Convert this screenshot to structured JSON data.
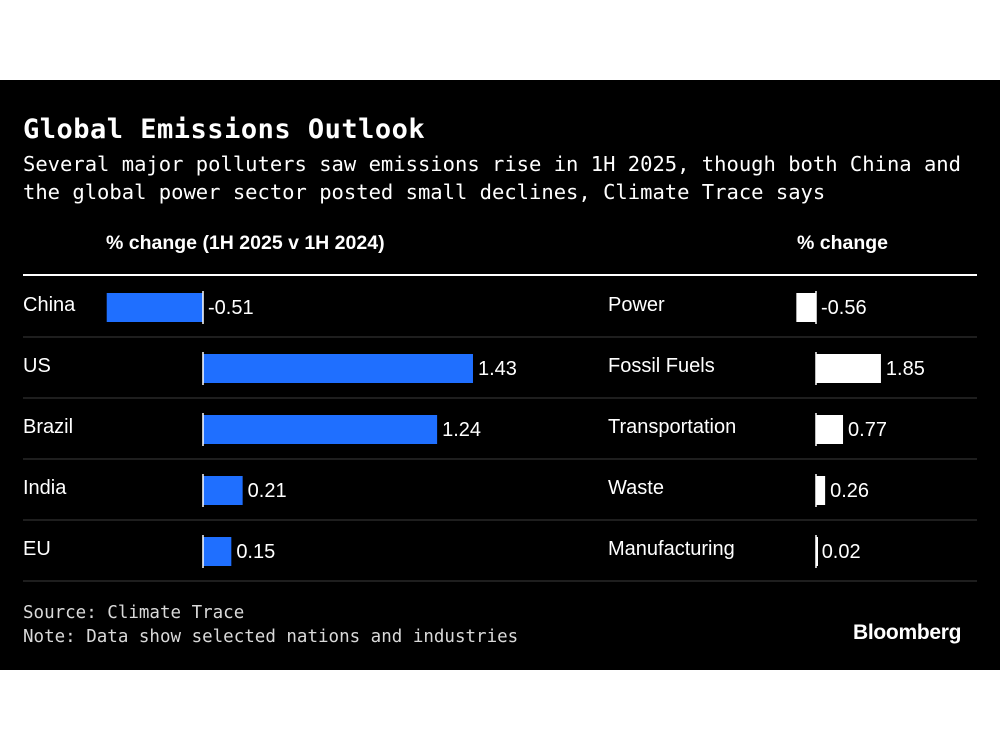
{
  "title": "Global Emissions Outlook",
  "subtitle": "Several major polluters saw emissions rise in 1H 2025, though both China and the global power sector posted small declines, Climate Trace says",
  "source": "Source: Climate Trace",
  "note": "Note: Data show selected nations and industries",
  "brand": "Bloomberg",
  "colors": {
    "left_bars": "#1f6fff",
    "right_bars": "#ffffff",
    "background": "#000000",
    "text": "#ffffff",
    "row_rule": "#3c3c3c"
  },
  "chart_data": [
    {
      "type": "bar",
      "orientation": "horizontal",
      "title": "% change (1H 2025 v 1H 2024)",
      "categories": [
        "China",
        "US",
        "Brazil",
        "India",
        "EU"
      ],
      "values": [
        -0.51,
        1.43,
        1.24,
        0.21,
        0.15
      ],
      "value_labels": [
        "-0.51",
        "1.43",
        "1.24",
        "0.21",
        "0.15"
      ],
      "bar_color": "#1f6fff"
    },
    {
      "type": "bar",
      "orientation": "horizontal",
      "title": "% change",
      "categories": [
        "Power",
        "Fossil Fuels",
        "Transportation",
        "Waste",
        "Manufacturing"
      ],
      "values": [
        -0.56,
        1.85,
        0.77,
        0.26,
        0.02
      ],
      "value_labels": [
        "-0.56",
        "1.85",
        "0.77",
        "0.26",
        "0.02"
      ],
      "bar_color": "#ffffff"
    }
  ]
}
